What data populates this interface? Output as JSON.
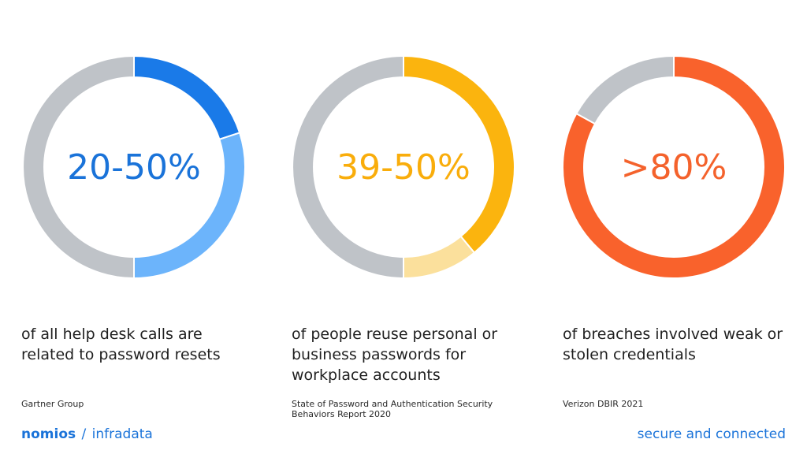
{
  "chart_data": [
    {
      "type": "pie",
      "center_label": "20-50%",
      "center_color": "#1a73d9",
      "slices": [
        {
          "value": 20,
          "color": "#1a7ae8"
        },
        {
          "value": 30,
          "color": "#6cb4fb"
        },
        {
          "value": 50,
          "color": "#bfc3c8"
        }
      ],
      "description": "of all help desk calls are related to password resets",
      "source": "Gartner Group"
    },
    {
      "type": "pie",
      "center_label": "39-50%",
      "center_color": "#f9ad0b",
      "slices": [
        {
          "value": 39,
          "color": "#fbb40e"
        },
        {
          "value": 11,
          "color": "#fbe09c"
        },
        {
          "value": 50,
          "color": "#bfc3c8"
        }
      ],
      "description": "of people reuse personal or business passwords for workplace accounts",
      "source": "State of Password and Authentication Security Behaviors Report 2020"
    },
    {
      "type": "pie",
      "center_label": ">80%",
      "center_color": "#f4622c",
      "slices": [
        {
          "value": 83,
          "color": "#f9622c"
        },
        {
          "value": 17,
          "color": "#bfc3c8"
        }
      ],
      "description": "of breaches involved weak or stolen credentials",
      "source": "Verizon DBIR 2021"
    }
  ],
  "footer": {
    "brand_primary": "nomios",
    "separator": "/",
    "brand_secondary": "infradata",
    "tagline": "secure and connected"
  }
}
